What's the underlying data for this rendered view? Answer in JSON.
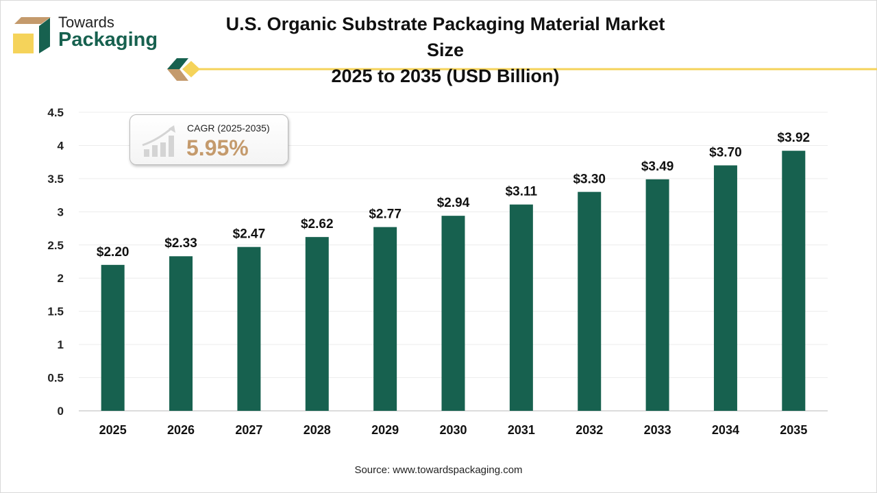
{
  "logo": {
    "line1": "Towards",
    "line2": "Packaging"
  },
  "colors": {
    "bar": "#17614f",
    "accent": "#f5c842",
    "brand_green": "#17614f",
    "brand_tan": "#c49a6c"
  },
  "cagr": {
    "label": "CAGR (2025-2035)",
    "value": "5.95%",
    "icon": "growth-chart-icon"
  },
  "source": "Source: www.towardspackaging.com",
  "chart_data": {
    "type": "bar",
    "title": "U.S. Organic Substrate Packaging Material Market Size",
    "subtitle": "2025 to 2035 (USD Billion)",
    "xlabel": "",
    "ylabel": "",
    "categories": [
      "2025",
      "2026",
      "2027",
      "2028",
      "2029",
      "2030",
      "2031",
      "2032",
      "2033",
      "2034",
      "2035"
    ],
    "values": [
      2.2,
      2.33,
      2.47,
      2.62,
      2.77,
      2.94,
      3.11,
      3.3,
      3.49,
      3.7,
      3.92
    ],
    "data_labels": [
      "$2.20",
      "$2.33",
      "$2.47",
      "$2.62",
      "$2.77",
      "$2.94",
      "$3.11",
      "$3.30",
      "$3.49",
      "$3.70",
      "$3.92"
    ],
    "ylim": [
      0,
      4.5
    ],
    "yticks": [
      "0",
      "0.5",
      "1",
      "1.5",
      "2",
      "2.5",
      "3",
      "3.5",
      "4",
      "4.5"
    ],
    "grid": true
  }
}
